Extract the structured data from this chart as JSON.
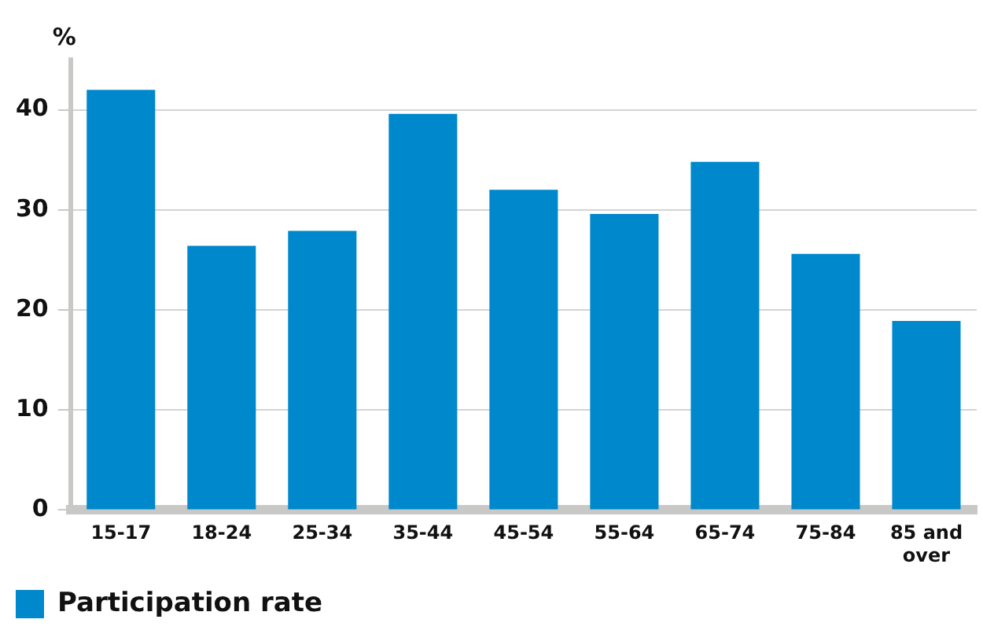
{
  "chart_data": {
    "type": "bar",
    "ylabel": "%",
    "categories": [
      "15-17",
      "18-24",
      "25-34",
      "35-44",
      "45-54",
      "55-64",
      "65-74",
      "75-84",
      "85 and over"
    ],
    "series": [
      {
        "name": "Participation rate",
        "color": "#0088cc",
        "values": [
          42,
          26.4,
          27.9,
          39.6,
          32,
          29.6,
          34.8,
          25.6,
          18.9
        ]
      }
    ],
    "ylim": [
      0,
      45
    ],
    "yticks": [
      0,
      10,
      20,
      30,
      40
    ],
    "grid": "y",
    "legend": "bottom left"
  }
}
